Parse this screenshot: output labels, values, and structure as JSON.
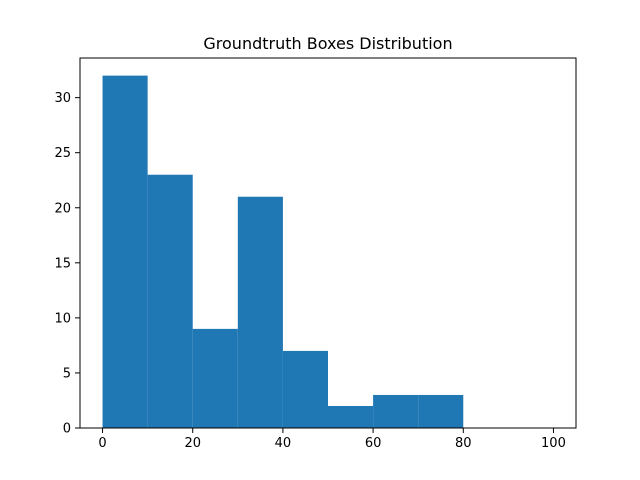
{
  "chart_data": {
    "type": "bar",
    "title": "Groundtruth Boxes Distribution",
    "xlabel": "",
    "ylabel": "",
    "bins": [
      {
        "x0": 0,
        "x1": 10,
        "count": 32
      },
      {
        "x0": 10,
        "x1": 20,
        "count": 23
      },
      {
        "x0": 20,
        "x1": 30,
        "count": 9
      },
      {
        "x0": 30,
        "x1": 40,
        "count": 21
      },
      {
        "x0": 40,
        "x1": 50,
        "count": 7
      },
      {
        "x0": 50,
        "x1": 60,
        "count": 2
      },
      {
        "x0": 60,
        "x1": 70,
        "count": 3
      },
      {
        "x0": 70,
        "x1": 80,
        "count": 3
      },
      {
        "x0": 80,
        "x1": 90,
        "count": 0
      },
      {
        "x0": 90,
        "x1": 100,
        "count": 0
      }
    ],
    "xlim": [
      -5,
      105
    ],
    "ylim": [
      0,
      33.6
    ],
    "xticks": [
      0,
      20,
      40,
      60,
      80,
      100
    ],
    "yticks": [
      0,
      5,
      10,
      15,
      20,
      25,
      30
    ],
    "grid": false,
    "bar_color": "#1f77b4"
  }
}
